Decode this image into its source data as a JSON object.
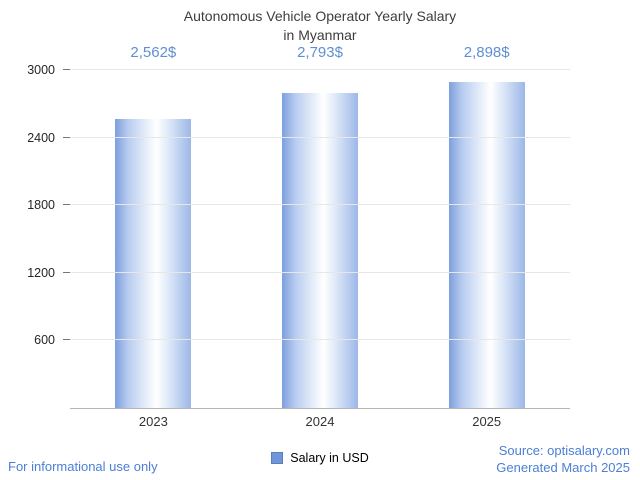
{
  "title": {
    "line1": "Autonomous Vehicle Operator Yearly Salary",
    "line2": "in Myanmar"
  },
  "chart_data": {
    "type": "bar",
    "title": "Autonomous Vehicle Operator Yearly Salary in Myanmar",
    "categories": [
      "2023",
      "2024",
      "2025"
    ],
    "values": [
      2562,
      2793,
      2898
    ],
    "value_labels": [
      "2,562$",
      "2,793$",
      "2,898$"
    ],
    "xlabel": "",
    "ylabel": "",
    "ylim": [
      0,
      3000
    ],
    "yticks": [
      600,
      1200,
      1800,
      2400,
      3000
    ],
    "grid": true,
    "legend": [
      "Salary in USD"
    ],
    "legend_position": "bottom",
    "bar_color_main": "#9cb7e8",
    "value_label_color": "#5f8fd2"
  },
  "legend": {
    "label": "Salary in USD",
    "swatch_color": "#7096d8"
  },
  "footer": {
    "left": "For informational use only",
    "source": "Source: optisalary.com",
    "generated": "Generated March 2025"
  }
}
